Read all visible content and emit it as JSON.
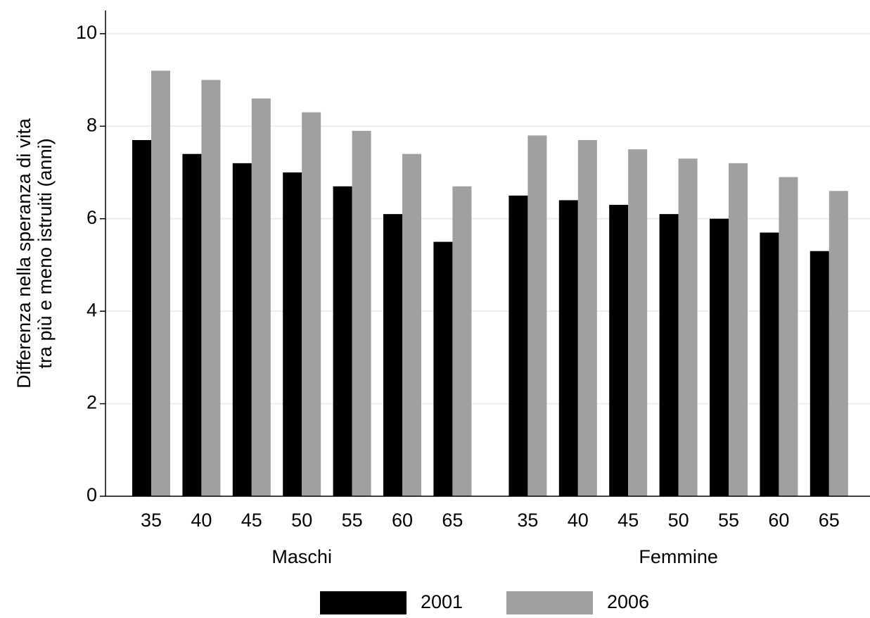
{
  "chart_data": {
    "type": "bar",
    "y_label": [
      "Differenza nella speranza di vita",
      "tra più e meno istruiti (anni)"
    ],
    "groups": [
      "Maschi",
      "Femmine"
    ],
    "categories": [
      "35",
      "40",
      "45",
      "50",
      "55",
      "60",
      "65",
      "35",
      "40",
      "45",
      "50",
      "55",
      "60",
      "65"
    ],
    "series": [
      {
        "name": "2001",
        "color": "#000000",
        "values": [
          7.7,
          7.4,
          7.2,
          7.0,
          6.7,
          6.1,
          5.5,
          6.5,
          6.4,
          6.3,
          6.1,
          6.0,
          5.7,
          5.3
        ]
      },
      {
        "name": "2006",
        "color": "#a0a0a0",
        "values": [
          9.2,
          9.0,
          8.6,
          8.3,
          7.9,
          7.4,
          6.7,
          7.8,
          7.7,
          7.5,
          7.3,
          7.2,
          6.9,
          6.6
        ]
      }
    ],
    "ylim": [
      0,
      10.5
    ],
    "yticks": [
      0,
      2,
      4,
      6,
      8,
      10
    ],
    "grid": true,
    "legend": "bottom"
  }
}
